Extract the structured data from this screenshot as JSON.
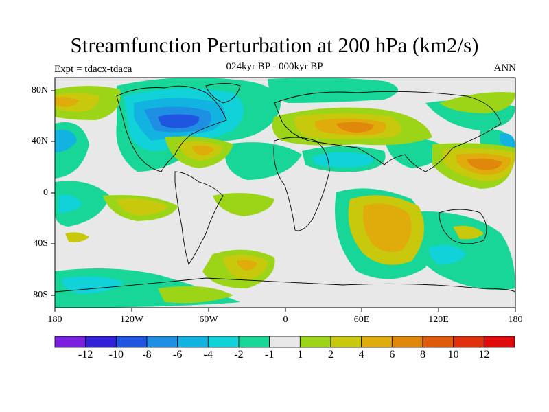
{
  "title": "Streamfunction Perturbation at 200 hPa (km2/s)",
  "subtitle": "024kyr BP - 000kyr BP",
  "experiment_label": "Expt = tdacx-tdaca",
  "season_label": "ANN",
  "lat_labels": [
    "80N",
    "40N",
    "0",
    "40S",
    "80S"
  ],
  "lon_labels": [
    "180",
    "120W",
    "60W",
    "0",
    "60E",
    "120E",
    "180"
  ],
  "colorbar": {
    "colors": [
      "#7a1ee0",
      "#3220d8",
      "#1f55e0",
      "#1e8fe2",
      "#12b3e0",
      "#10d2d8",
      "#18d698",
      "#e8e8e8",
      "#9cd418",
      "#c8c80c",
      "#e0ac0c",
      "#e0880c",
      "#e05a0c",
      "#e0300c",
      "#e00c0c"
    ],
    "labels": [
      "-12",
      "-10",
      "-8",
      "-6",
      "-4",
      "-2",
      "-1",
      "1",
      "2",
      "4",
      "6",
      "8",
      "10",
      "12"
    ]
  }
}
